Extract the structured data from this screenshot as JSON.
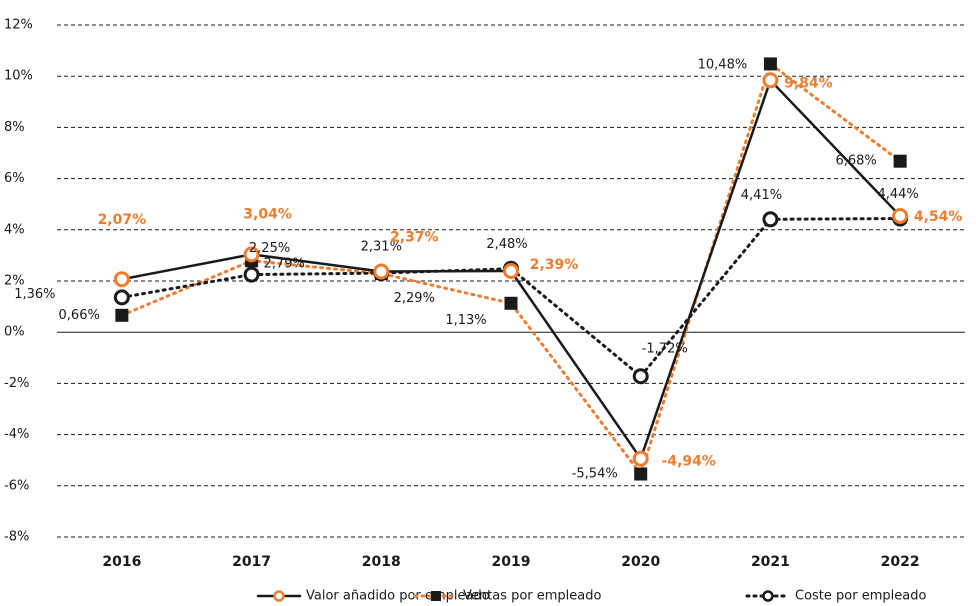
{
  "chart_data": {
    "type": "line",
    "categories": [
      "2016",
      "2017",
      "2018",
      "2019",
      "2020",
      "2021",
      "2022"
    ],
    "ylim": [
      -8,
      12
    ],
    "yticks": [
      {
        "value": -8,
        "label": "-8%"
      },
      {
        "value": -6,
        "label": "-6%"
      },
      {
        "value": -4,
        "label": "-4%"
      },
      {
        "value": -2,
        "label": "-2%"
      },
      {
        "value": 0,
        "label": "0%"
      },
      {
        "value": 2,
        "label": "2%"
      },
      {
        "value": 4,
        "label": "4%"
      },
      {
        "value": 6,
        "label": "6%"
      },
      {
        "value": 8,
        "label": "8%"
      },
      {
        "value": 10,
        "label": "10%"
      },
      {
        "value": 12,
        "label": "12%"
      }
    ],
    "grid": true,
    "legend": "bottom",
    "series": [
      {
        "name": "Valor añadido por empleado",
        "color": "#1a1a1a",
        "marker_color": "#ed7d31",
        "line_style": "solid",
        "marker": "circle",
        "values": [
          2.07,
          3.04,
          2.37,
          2.39,
          -4.94,
          9.84,
          4.54
        ],
        "value_labels": [
          "2,07%",
          "3,04%",
          "2,37%",
          "2,39%",
          "-4,94%",
          "9,84%",
          "4,54%"
        ]
      },
      {
        "name": "Ventas por empleado",
        "color": "#ed7d31",
        "marker_color": "#1a1a1a",
        "line_style": "dotted",
        "marker": "square",
        "values": [
          0.66,
          2.79,
          2.29,
          1.13,
          -5.54,
          10.48,
          6.68
        ],
        "value_labels": [
          "0,66%",
          "2,79%",
          "2,29%",
          "1,13%",
          "-5,54%",
          "10,48%",
          "6,68%"
        ]
      },
      {
        "name": "Coste por empleado",
        "color": "#1a1a1a",
        "marker_color": "#1a1a1a",
        "line_style": "dotted",
        "marker": "open-circle",
        "values": [
          1.36,
          2.25,
          2.31,
          2.48,
          -1.72,
          4.41,
          4.44
        ],
        "value_labels": [
          "1,36%",
          "2,25%",
          "2,31%",
          "2,48%",
          "-1,72%",
          "4,41%",
          "4,44%"
        ]
      }
    ]
  }
}
